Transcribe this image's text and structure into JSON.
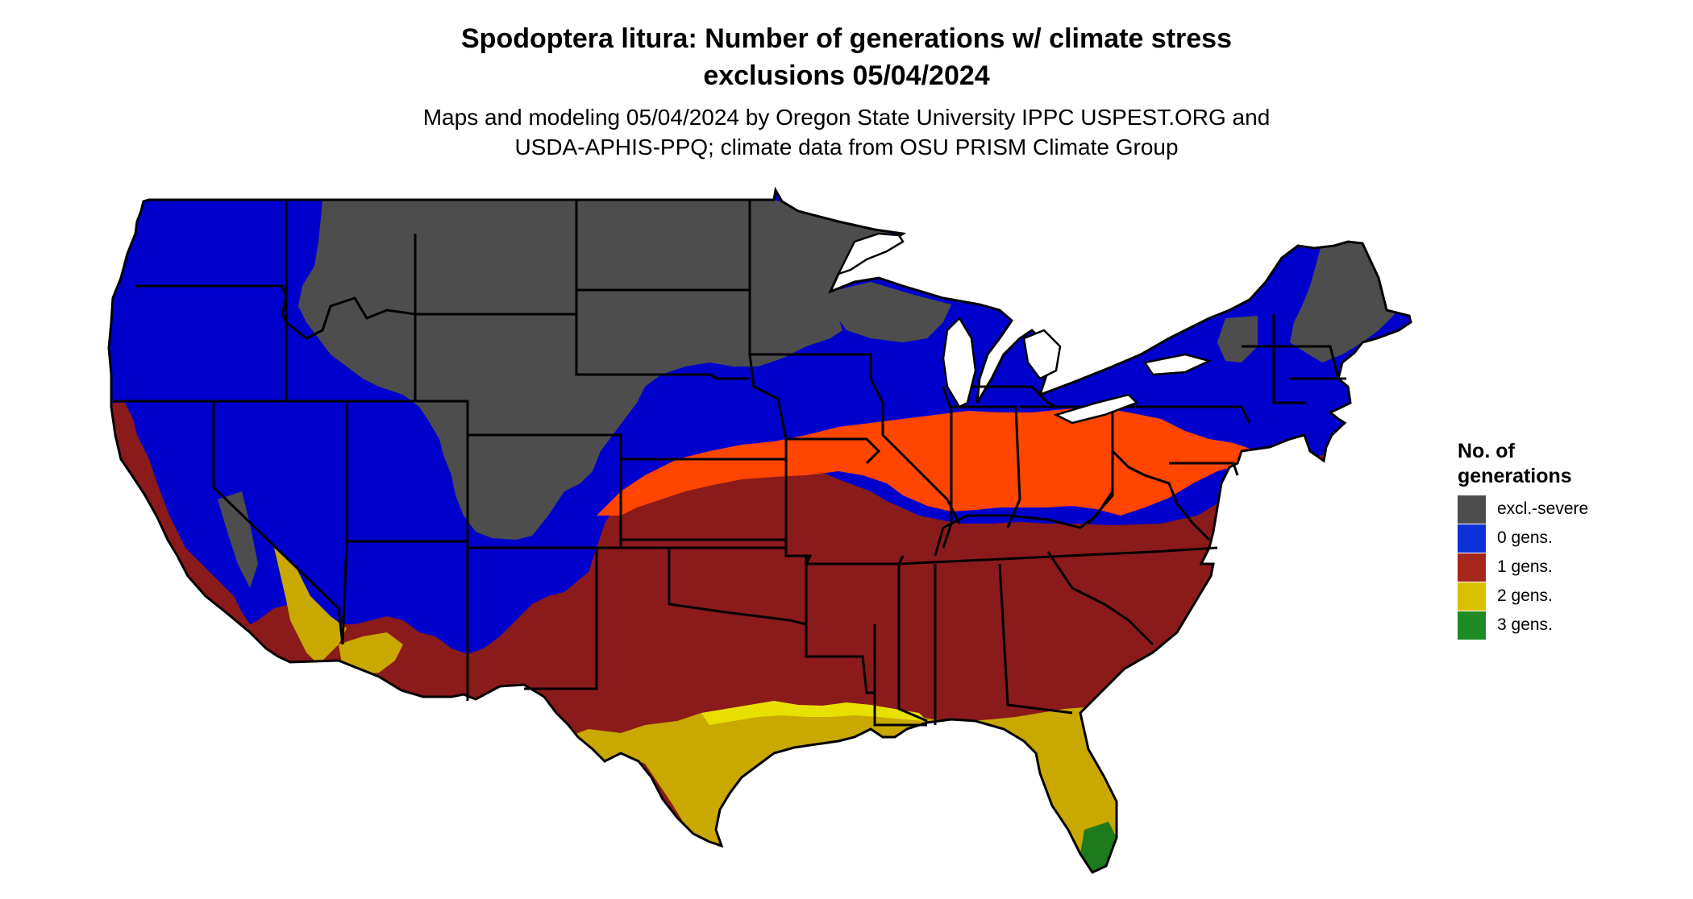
{
  "title": {
    "line1": "Spodoptera litura: Number of generations w/ climate stress",
    "line2": "exclusions 05/04/2024"
  },
  "subtitle": {
    "line1": "Maps and modeling 05/04/2024 by Oregon State University IPPC USPEST.ORG and",
    "line2": "USDA-APHIS-PPQ; climate data from OSU PRISM Climate Group"
  },
  "legend": {
    "title_line1": "No. of",
    "title_line2": "generations",
    "items": [
      {
        "label": "excl.-severe",
        "color": "#4d4d4d"
      },
      {
        "label": "0 gens.",
        "color": "#0a32d6"
      },
      {
        "label": "1 gens.",
        "color": "#a6261b"
      },
      {
        "label": "2 gens.",
        "color": "#d9c000"
      },
      {
        "label": "3 gens.",
        "color": "#1f8b24"
      }
    ]
  },
  "map_colors": {
    "excluded": "#4d4d4d",
    "zero": "#0000cc",
    "zero_light": "#ff4500",
    "one": "#8b1a1a",
    "two": "#c9a800",
    "two_light": "#e8e000",
    "three": "#1d7a1d",
    "border": "#000000"
  }
}
